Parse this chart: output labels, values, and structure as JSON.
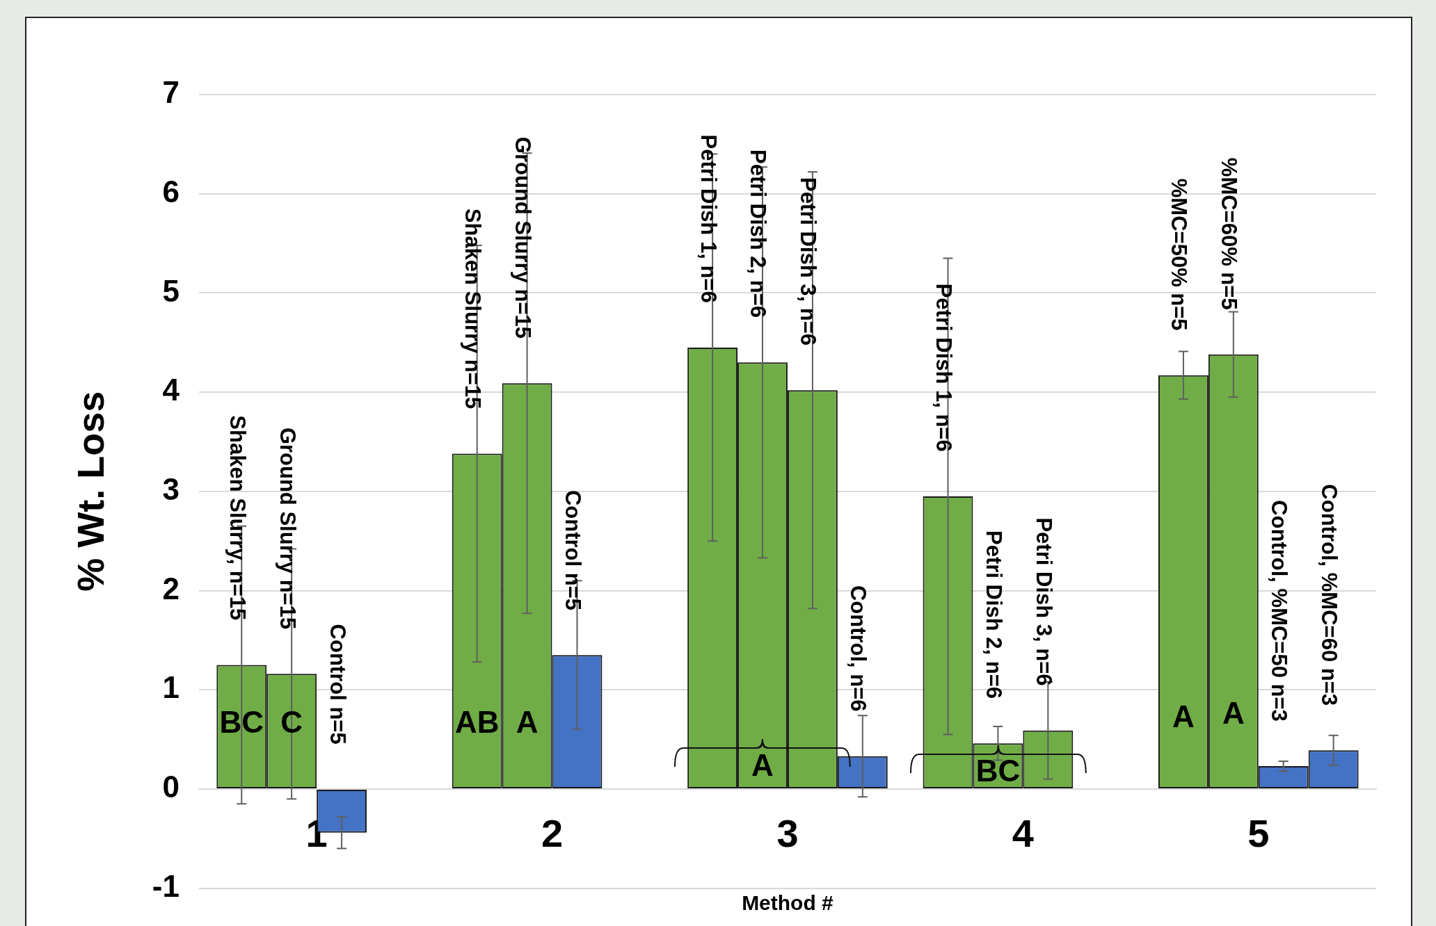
{
  "chart_data": {
    "type": "bar",
    "xlabel": "Method #",
    "ylabel": "% Wt. Loss",
    "categories": [
      "1",
      "2",
      "3",
      "4",
      "5"
    ],
    "series": [
      {
        "colors": [
          "#70ad47",
          "#70ad47",
          "#70ad47",
          "#70ad47",
          "#70ad47"
        ],
        "values": [
          1.25,
          3.38,
          4.45,
          2.95,
          4.17
        ],
        "errors": [
          1.4,
          2.1,
          1.95,
          2.4,
          0.24
        ]
      },
      {
        "colors": [
          "#70ad47",
          "#70ad47",
          "#70ad47",
          "#70ad47",
          "#70ad47"
        ],
        "values": [
          1.16,
          4.09,
          4.3,
          0.46,
          4.38
        ],
        "errors": [
          1.26,
          2.32,
          1.97,
          0.17,
          0.43
        ]
      },
      {
        "colors": [
          "#4472c4",
          "#4472c4",
          "#70ad47",
          "#70ad47",
          "#4472c4"
        ],
        "values": [
          -0.44,
          1.35,
          4.02,
          0.59,
          0.23
        ],
        "errors": [
          0.16,
          0.75,
          2.2,
          0.49,
          0.05
        ]
      },
      {
        "colors": [
          "#4472c4",
          "#4472c4",
          "#4472c4",
          "#4472c4",
          "#4472c4"
        ],
        "values": [
          0,
          0,
          0.33,
          null,
          0.39
        ],
        "errors": [
          0,
          0,
          0.41,
          null,
          0.15
        ]
      }
    ],
    "annotations": [
      "Shaken Slurry, n=15",
      "Ground Slurry n=15",
      "Control n=5",
      "Shaken Slurry n=15",
      "Ground Slurry n=15",
      "Control n=5",
      "Petri Dish 1, n=6",
      "Petri Dish 2, n=6",
      "Petri Dish 3, n=6",
      "Control, n=6",
      "Petri Dish 1, n=6",
      "Petri Dish 2, n=6",
      "Petri Dish 3, n=6",
      "%MC=50% n=5",
      "%MC=60% n=5",
      "Control, %MC=50 n=3",
      "Control, %MC=60 n=3",
      {
        "text": "BC",
        "x": "1",
        "y": 0.65
      },
      {
        "text": "C",
        "x": "1",
        "y": 0.65
      },
      {
        "text": "AB",
        "x": "2",
        "y": 0.65
      },
      {
        "text": "A",
        "x": "2",
        "y": 0.65
      },
      {
        "text": "A",
        "x": "3",
        "y": 0.22
      },
      {
        "text": "BC",
        "x": "4",
        "y": 0.16
      },
      {
        "text": "A",
        "x": "5",
        "y": 0.71
      },
      {
        "text": "A",
        "x": "5",
        "y": 0.74
      }
    ],
    "ylim": [
      -1,
      7
    ],
    "yticks": [
      -1,
      0,
      1,
      2,
      3,
      4,
      5,
      6,
      7
    ],
    "grid": "y",
    "legend": false
  }
}
